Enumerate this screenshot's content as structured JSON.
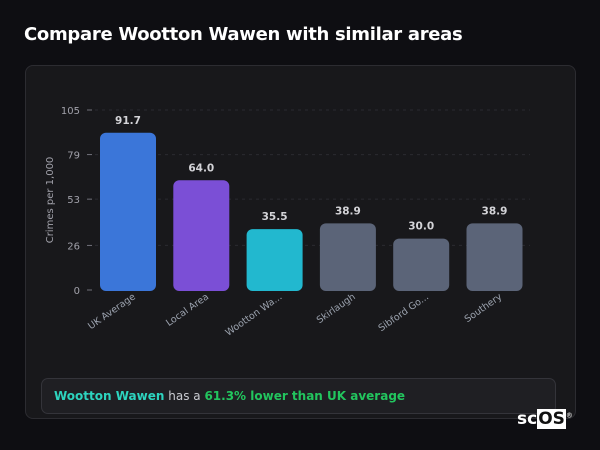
{
  "title": "Compare Wootton Wawen with similar areas",
  "chart_data": {
    "type": "bar",
    "categories": [
      "UK Average",
      "Local Area",
      "Wootton Wa...",
      "Skirlaugh",
      "Sibford Go...",
      "Southery"
    ],
    "values": [
      91.7,
      64.0,
      35.5,
      38.9,
      30.0,
      38.9
    ],
    "value_labels": [
      "91.7",
      "64.0",
      "35.5",
      "38.9",
      "30.0",
      "38.9"
    ],
    "colors": [
      "#3b76d9",
      "#7b4fd6",
      "#22b8cf",
      "#5b6478",
      "#5b6478",
      "#5b6478"
    ],
    "ylabel": "Crimes per 1,000",
    "xlabel": "",
    "ylim": [
      0,
      105
    ],
    "yticks": [
      0,
      26,
      53,
      79,
      105
    ],
    "grid": true
  },
  "summary": {
    "name": "Wootton Wawen",
    "middle": " has a ",
    "value": "61.3% lower than UK average"
  },
  "logo": {
    "text_a": "sc",
    "text_b": "OS",
    "mark": "®"
  }
}
